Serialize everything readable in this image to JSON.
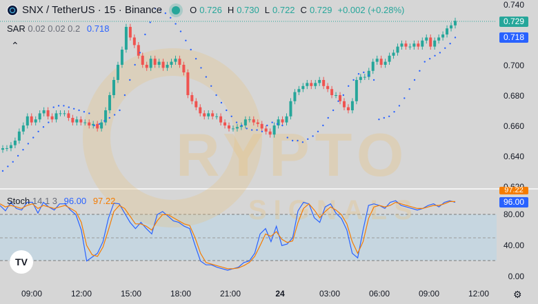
{
  "header": {
    "symbol": "SNX / TetherUS · 15 · Binance",
    "o_key": "O",
    "o_val": "0.726",
    "h_key": "H",
    "h_val": "0.730",
    "l_key": "L",
    "l_val": "0.722",
    "c_key": "C",
    "c_val": "0.729",
    "change": "+0.002 (+0.28%)"
  },
  "sar": {
    "label": "SAR",
    "params": "0.02 0.02 0.2",
    "value": "0.718"
  },
  "stoch": {
    "label": "Stoch",
    "params": "14 1 3",
    "k_value": "96.00",
    "d_value": "97.22"
  },
  "price_axis": [
    "0.740",
    "0.720",
    "0.700",
    "0.680",
    "0.660",
    "0.640",
    "0.620"
  ],
  "price_tags": {
    "last": "0.729",
    "sar": "0.718"
  },
  "stoch_axis": [
    "80.00",
    "40.00",
    "0.00"
  ],
  "stoch_tags": {
    "d": "97.22",
    "k": "96.00"
  },
  "time_axis": [
    "09:00",
    "12:00",
    "15:00",
    "18:00",
    "21:00",
    "24",
    "03:00",
    "06:00",
    "09:00",
    "12:00"
  ],
  "watermark": {
    "line1": "RYPTO",
    "line2": "SIGNALS"
  },
  "logo_text": "TV",
  "colors": {
    "up": "#26a69a",
    "down": "#ef5350",
    "sar": "#2962ff",
    "k": "#2962ff",
    "d": "#f57c00",
    "band": "#c6d6e0"
  },
  "chart_data": [
    {
      "type": "candlestick",
      "title": "SNX / TetherUS · 15 · Binance",
      "ylim": [
        0.62,
        0.74
      ],
      "x_ticks": [
        "09:00",
        "12:00",
        "15:00",
        "18:00",
        "21:00",
        "24",
        "03:00",
        "06:00",
        "09:00",
        "12:00"
      ],
      "close_approx": [
        0.645,
        0.645,
        0.647,
        0.65,
        0.656,
        0.66,
        0.666,
        0.662,
        0.664,
        0.668,
        0.67,
        0.666,
        0.664,
        0.668,
        0.668,
        0.668,
        0.665,
        0.662,
        0.664,
        0.662,
        0.662,
        0.66,
        0.661,
        0.658,
        0.662,
        0.67,
        0.68,
        0.69,
        0.7,
        0.71,
        0.725,
        0.718,
        0.713,
        0.706,
        0.7,
        0.698,
        0.704,
        0.7,
        0.702,
        0.698,
        0.7,
        0.702,
        0.704,
        0.7,
        0.695,
        0.68,
        0.676,
        0.672,
        0.668,
        0.666,
        0.668,
        0.666,
        0.666,
        0.662,
        0.66,
        0.658,
        0.658,
        0.659,
        0.66,
        0.664,
        0.664,
        0.662,
        0.661,
        0.658,
        0.656,
        0.654,
        0.66,
        0.664,
        0.662,
        0.666,
        0.676,
        0.682,
        0.684,
        0.686,
        0.688,
        0.686,
        0.688,
        0.69,
        0.686,
        0.684,
        0.68,
        0.68,
        0.676,
        0.672,
        0.67,
        0.676,
        0.69,
        0.692,
        0.692,
        0.696,
        0.702,
        0.704,
        0.7,
        0.702,
        0.706,
        0.708,
        0.712,
        0.714,
        0.712,
        0.712,
        0.714,
        0.712,
        0.716,
        0.718,
        0.712,
        0.716,
        0.718,
        0.72,
        0.724,
        0.726,
        0.729
      ],
      "sar_approx": [
        0.63,
        0.633,
        0.636,
        0.64,
        0.644,
        0.648,
        0.652,
        0.656,
        0.659,
        0.662,
        0.672,
        0.673,
        0.673,
        0.672,
        0.671,
        0.67,
        0.669,
        0.668,
        0.66,
        0.661,
        0.663,
        0.665,
        0.667,
        0.67,
        0.68,
        0.69,
        0.7,
        0.708,
        0.72,
        0.728,
        0.737,
        0.736,
        0.734,
        0.731,
        0.727,
        0.722,
        0.716,
        0.71,
        0.704,
        0.698,
        0.692,
        0.686,
        0.68,
        0.675,
        0.67,
        0.666,
        0.662,
        0.66,
        0.658,
        0.657,
        0.657,
        0.656,
        0.66,
        0.662,
        0.661,
        0.66,
        0.652,
        0.65,
        0.65,
        0.649,
        0.651,
        0.653,
        0.656,
        0.66,
        0.665,
        0.67,
        0.676,
        0.68,
        0.686,
        0.69,
        0.694,
        0.695,
        0.693,
        0.69,
        0.664,
        0.665,
        0.666,
        0.669,
        0.673,
        0.678,
        0.684,
        0.69,
        0.696,
        0.702,
        0.704,
        0.706,
        0.708,
        0.711,
        0.714,
        0.718
      ]
    },
    {
      "type": "line",
      "title": "Stoch 14 1 3",
      "ylim": [
        0,
        100
      ],
      "series": [
        {
          "name": "%K",
          "values": [
            92,
            85,
            96,
            88,
            86,
            96,
            96,
            82,
            96,
            90,
            86,
            94,
            94,
            86,
            80,
            60,
            20,
            25,
            30,
            45,
            75,
            95,
            94,
            82,
            70,
            62,
            70,
            62,
            55,
            80,
            84,
            78,
            72,
            70,
            65,
            62,
            40,
            20,
            15,
            15,
            12,
            10,
            8,
            10,
            12,
            18,
            20,
            30,
            55,
            62,
            45,
            65,
            40,
            42,
            50,
            85,
            96,
            94,
            76,
            70,
            90,
            94,
            82,
            75,
            60,
            30,
            24,
            60,
            92,
            94,
            92,
            88,
            96,
            98,
            92,
            90,
            88,
            86,
            88,
            92,
            94,
            90,
            96,
            98,
            96
          ]
        },
        {
          "name": "%D",
          "values": [
            94,
            90,
            92,
            90,
            88,
            92,
            94,
            88,
            92,
            90,
            88,
            90,
            92,
            88,
            84,
            70,
            40,
            28,
            26,
            38,
            60,
            84,
            92,
            88,
            78,
            68,
            68,
            65,
            60,
            72,
            80,
            80,
            76,
            72,
            68,
            66,
            50,
            30,
            18,
            16,
            14,
            12,
            10,
            10,
            11,
            14,
            18,
            26,
            40,
            55,
            52,
            58,
            48,
            44,
            46,
            70,
            88,
            94,
            86,
            76,
            84,
            90,
            86,
            80,
            68,
            45,
            30,
            45,
            75,
            90,
            92,
            90,
            92,
            96,
            94,
            92,
            90,
            88,
            88,
            90,
            92,
            92,
            94,
            97,
            97
          ]
        }
      ]
    }
  ]
}
